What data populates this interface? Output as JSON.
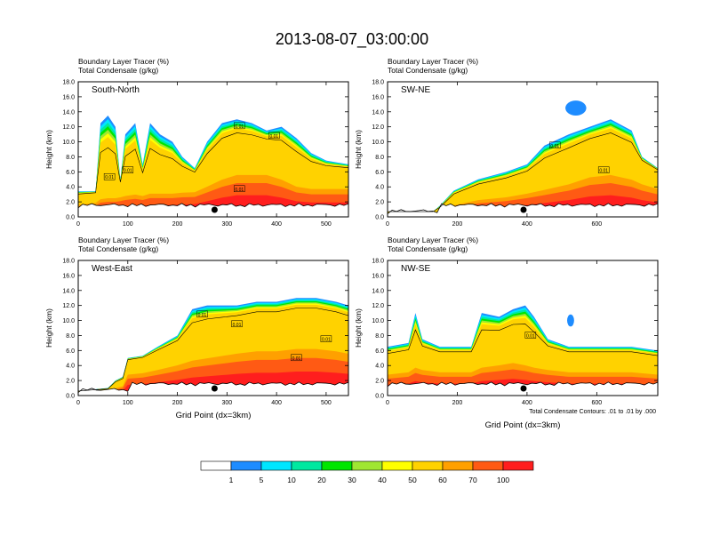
{
  "title": "2013-08-07_03:00:00",
  "panel_titles": [
    "Boundary Layer Tracer   (%)",
    "Total Condensate   (g/kg)"
  ],
  "footnote": "Total Condensate Contours: .01 to .01 by .000",
  "colors": {
    "levels": [
      "#ffffff",
      "#1e8cff",
      "#00e6ff",
      "#00e8a0",
      "#00e600",
      "#a0e632",
      "#ffff00",
      "#ffd200",
      "#ffa000",
      "#ff5a14",
      "#ff1e1e"
    ]
  },
  "chart_data": [
    {
      "type": "heatmap",
      "name": "South-North",
      "xlabel": "",
      "ylabel": "Height (km)",
      "xlim": [
        0,
        545
      ],
      "ylim": [
        0,
        18
      ],
      "xticks": [
        0,
        100,
        200,
        300,
        400,
        500
      ],
      "yticks": [
        "0.0",
        "2.0",
        "4.0",
        "6.0",
        "8.0",
        "10.0",
        "12.0",
        "14.0",
        "16.0",
        "18.0"
      ],
      "marker_x": 275,
      "contour_labels": [
        {
          "text": "0.01",
          "x": 63,
          "y": 5.3
        },
        {
          "text": "0.01",
          "x": 100,
          "y": 6.2
        },
        {
          "text": "0.01",
          "x": 325,
          "y": 12.1
        },
        {
          "text": "0.01",
          "x": 395,
          "y": 10.8
        },
        {
          "text": "0.01",
          "x": 325,
          "y": 3.7
        }
      ],
      "profile": [
        [
          0,
          2.6,
          3.4
        ],
        [
          35,
          3.0,
          3.4
        ],
        [
          45,
          3.8,
          12.5
        ],
        [
          60,
          4.0,
          13.5
        ],
        [
          75,
          4.0,
          12.0
        ],
        [
          85,
          4.2,
          5.0
        ],
        [
          95,
          4.5,
          11.0
        ],
        [
          115,
          4.8,
          12.5
        ],
        [
          130,
          4.5,
          7.0
        ],
        [
          145,
          5.0,
          12.5
        ],
        [
          165,
          5.0,
          11.0
        ],
        [
          190,
          5.0,
          10.0
        ],
        [
          210,
          5.2,
          8.0
        ],
        [
          235,
          5.3,
          6.5
        ],
        [
          260,
          6.5,
          10.0
        ],
        [
          290,
          8.0,
          12.5
        ],
        [
          320,
          9.0,
          13.0
        ],
        [
          350,
          9.0,
          12.5
        ],
        [
          380,
          9.0,
          11.5
        ],
        [
          410,
          8.0,
          12.0
        ],
        [
          440,
          6.5,
          10.5
        ],
        [
          470,
          6.0,
          8.5
        ],
        [
          500,
          6.0,
          7.5
        ],
        [
          545,
          6.0,
          7.0
        ]
      ]
    },
    {
      "type": "heatmap",
      "name": "SW-NE",
      "xlabel": "",
      "ylabel": "Height (km)",
      "xlim": [
        0,
        775
      ],
      "ylim": [
        0,
        18
      ],
      "xticks": [
        0,
        200,
        400,
        600
      ],
      "yticks": [
        "0.0",
        "2.0",
        "4.0",
        "6.0",
        "8.0",
        "10.0",
        "12.0",
        "14.0",
        "16.0",
        "18.0"
      ],
      "marker_x": 390,
      "contour_labels": [
        {
          "text": "0.01",
          "x": 480,
          "y": 9.5
        },
        {
          "text": "0.01",
          "x": 620,
          "y": 6.2
        }
      ],
      "profile": [
        [
          0,
          0.7,
          0.7
        ],
        [
          130,
          0.7,
          0.7
        ],
        [
          150,
          1.0,
          1.5
        ],
        [
          190,
          2.5,
          3.5
        ],
        [
          260,
          3.6,
          5.0
        ],
        [
          340,
          4.2,
          6.0
        ],
        [
          400,
          5.0,
          7.0
        ],
        [
          450,
          5.8,
          9.5
        ],
        [
          520,
          7.0,
          11.0
        ],
        [
          580,
          8.5,
          12.0
        ],
        [
          640,
          9.0,
          13.0
        ],
        [
          700,
          8.0,
          11.5
        ],
        [
          730,
          7.0,
          8.0
        ],
        [
          775,
          6.0,
          6.5
        ]
      ],
      "blob": {
        "x": 540,
        "y": 14.5,
        "rx": 30,
        "ry": 1.0
      }
    },
    {
      "type": "heatmap",
      "name": "West-East",
      "xlabel": "Grid Point (dx=3km)",
      "ylabel": "Height (km)",
      "xlim": [
        0,
        545
      ],
      "ylim": [
        0,
        18
      ],
      "xticks": [
        0,
        100,
        200,
        300,
        400,
        500
      ],
      "yticks": [
        "0.0",
        "2.0",
        "4.0",
        "6.0",
        "8.0",
        "10.0",
        "12.0",
        "14.0",
        "16.0",
        "18.0"
      ],
      "marker_x": 275,
      "contour_labels": [
        {
          "text": "0.01",
          "x": 250,
          "y": 10.8
        },
        {
          "text": "0.01",
          "x": 320,
          "y": 9.5
        },
        {
          "text": "0.01",
          "x": 440,
          "y": 5.0
        },
        {
          "text": "0.01",
          "x": 500,
          "y": 7.5
        }
      ],
      "profile": [
        [
          0,
          0.6,
          0.6
        ],
        [
          60,
          0.8,
          1.0
        ],
        [
          75,
          1.6,
          2.0
        ],
        [
          90,
          2.0,
          2.5
        ],
        [
          100,
          4.5,
          5.0
        ],
        [
          130,
          4.8,
          5.3
        ],
        [
          160,
          5.5,
          6.5
        ],
        [
          200,
          6.5,
          8.0
        ],
        [
          230,
          7.5,
          11.5
        ],
        [
          260,
          8.0,
          12.0
        ],
        [
          290,
          8.5,
          12.0
        ],
        [
          320,
          9.0,
          12.0
        ],
        [
          360,
          9.5,
          12.5
        ],
        [
          400,
          9.5,
          12.5
        ],
        [
          440,
          10.0,
          13.0
        ],
        [
          480,
          10.0,
          13.0
        ],
        [
          520,
          9.5,
          12.5
        ],
        [
          545,
          9.0,
          12.0
        ]
      ]
    },
    {
      "type": "heatmap",
      "name": "NW-SE",
      "xlabel": "Grid Point (dx=3km)",
      "ylabel": "Height (km)",
      "xlim": [
        0,
        775
      ],
      "ylim": [
        0,
        18
      ],
      "xticks": [
        0,
        200,
        400,
        600
      ],
      "yticks": [
        "0.0",
        "2.0",
        "4.0",
        "6.0",
        "8.0",
        "10.0",
        "12.0",
        "14.0",
        "16.0",
        "18.0"
      ],
      "marker_x": 390,
      "contour_labels": [
        {
          "text": "0.01",
          "x": 410,
          "y": 8.0
        }
      ],
      "profile": [
        [
          0,
          4.5,
          6.5
        ],
        [
          60,
          5.0,
          7.0
        ],
        [
          80,
          6.0,
          11.0
        ],
        [
          100,
          5.5,
          7.5
        ],
        [
          150,
          5.0,
          6.5
        ],
        [
          240,
          5.0,
          6.5
        ],
        [
          270,
          6.0,
          11.0
        ],
        [
          320,
          6.5,
          10.5
        ],
        [
          360,
          7.0,
          11.5
        ],
        [
          395,
          6.5,
          12.0
        ],
        [
          420,
          6.0,
          10.5
        ],
        [
          460,
          5.5,
          7.5
        ],
        [
          520,
          5.0,
          6.5
        ],
        [
          620,
          5.0,
          6.5
        ],
        [
          700,
          5.0,
          6.5
        ],
        [
          775,
          4.5,
          6.0
        ]
      ],
      "blob": {
        "x": 525,
        "y": 10.0,
        "rx": 10,
        "ry": 0.8
      }
    }
  ],
  "colorbar": {
    "labels": [
      "1",
      "5",
      "10",
      "20",
      "30",
      "40",
      "50",
      "60",
      "70",
      "100"
    ]
  }
}
